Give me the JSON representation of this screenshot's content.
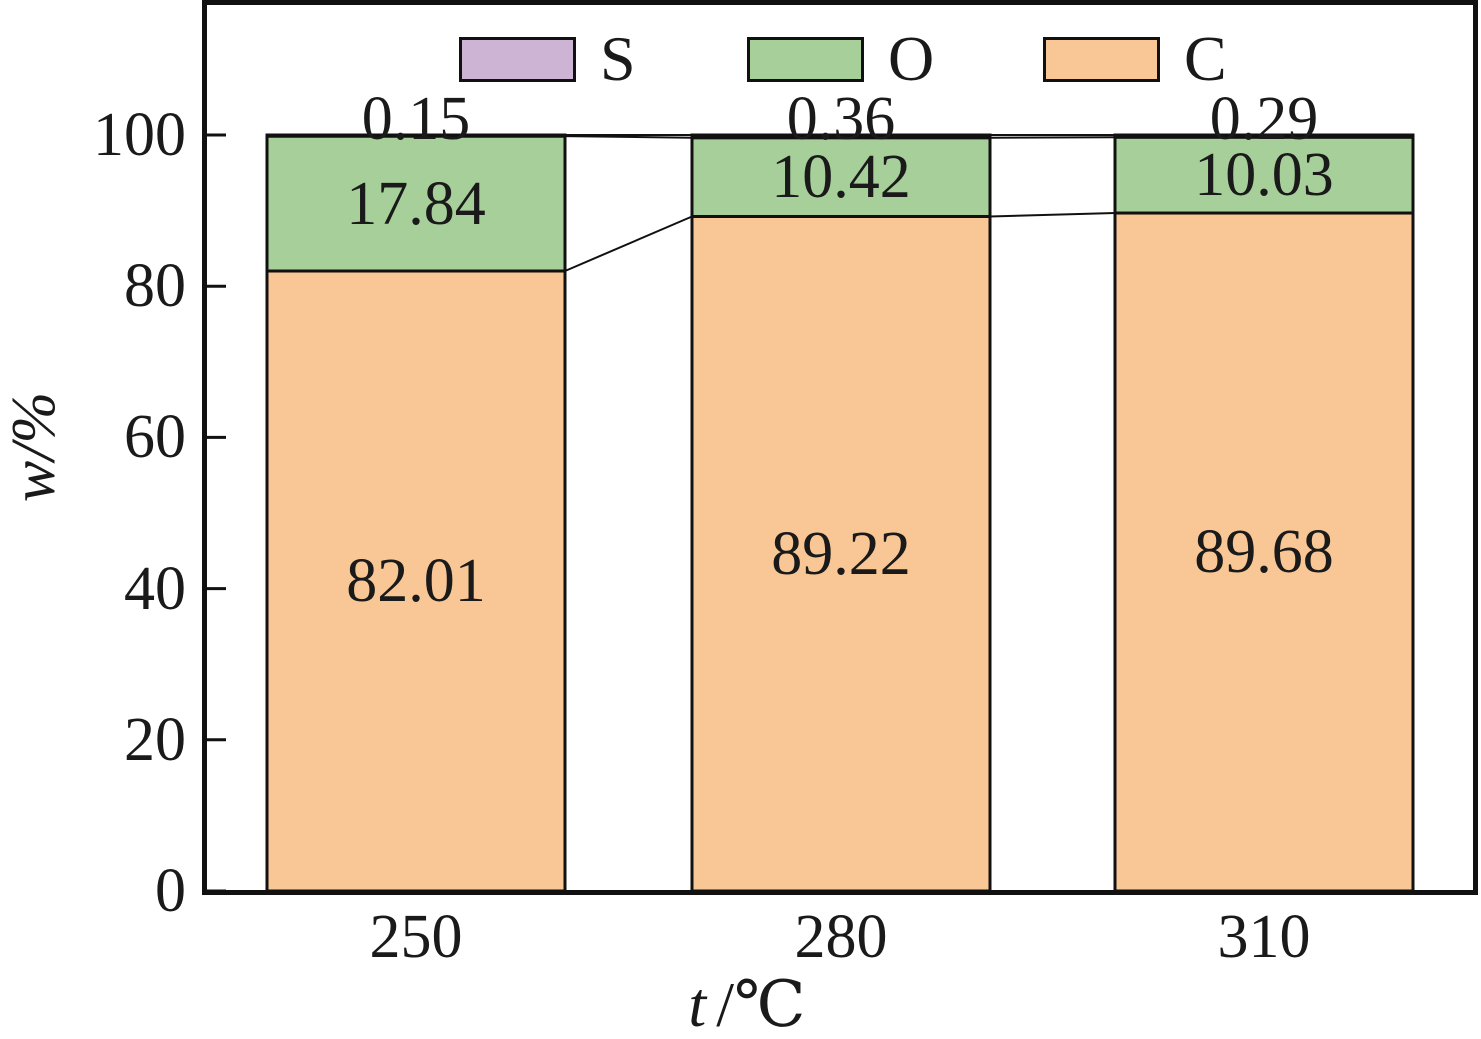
{
  "chart_data": {
    "type": "bar",
    "subtype": "stacked-column",
    "title": "",
    "categories": [
      "250",
      "280",
      "310"
    ],
    "series": [
      {
        "name": "C",
        "color": "#f9c795",
        "values": [
          82.01,
          89.22,
          89.68
        ]
      },
      {
        "name": "O",
        "color": "#a7cf9a",
        "values": [
          17.84,
          10.42,
          10.03
        ]
      },
      {
        "name": "S",
        "color": "#cdb4d5",
        "values": [
          0.15,
          0.36,
          0.29
        ]
      }
    ],
    "legend": {
      "position": "top-inside",
      "order": [
        "S",
        "O",
        "C"
      ]
    },
    "xlabel": {
      "variable": "t",
      "separator": "/",
      "unit": "℃"
    },
    "ylabel": {
      "variable": "w",
      "separator": "/",
      "unit": "%"
    },
    "yticks": [
      0,
      20,
      40,
      60,
      80,
      100
    ],
    "ylim": [
      0,
      100
    ],
    "grid": false,
    "segment_connectors": true,
    "value_labels": "on-segments",
    "colors": {
      "axis": "#111111",
      "text": "#1a1a1a",
      "background": "#ffffff"
    }
  }
}
